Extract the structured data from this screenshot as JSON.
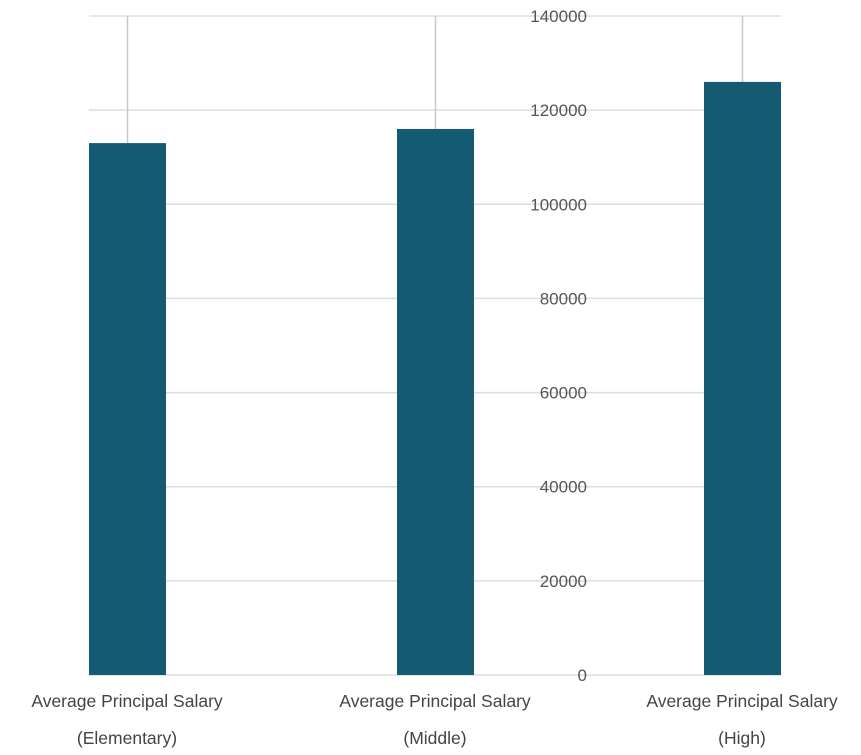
{
  "chart_data": {
    "type": "bar",
    "categories": [
      [
        "Average Principal Salary",
        "(Elementary)"
      ],
      [
        "Average Principal Salary",
        "(Middle)"
      ],
      [
        "Average Principal Salary",
        "(High)"
      ]
    ],
    "values": [
      113000,
      116000,
      126000
    ],
    "error_upper": [
      140000,
      140000,
      140000
    ],
    "ylim": [
      0,
      140000
    ],
    "yticks": [
      0,
      20000,
      40000,
      60000,
      80000,
      100000,
      120000,
      140000
    ],
    "ytick_labels": [
      "0",
      "20000",
      "40000",
      "60000",
      "80000",
      "100000",
      "120000",
      "140000"
    ],
    "grid": true,
    "legend": "none",
    "title": "",
    "xlabel": "",
    "ylabel": "",
    "colors": {
      "bar": "#145a72",
      "grid": "#dddddd",
      "error": "#c8c8c8"
    }
  }
}
